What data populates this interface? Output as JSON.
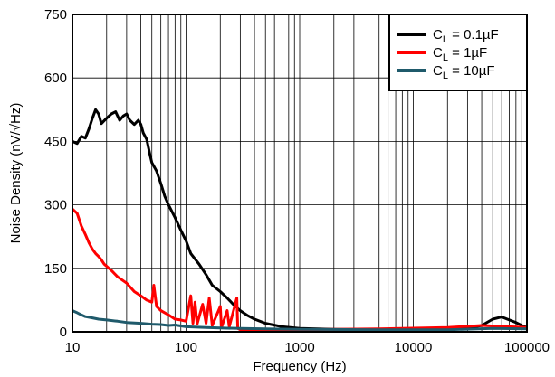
{
  "chart_data": {
    "type": "line",
    "title": "",
    "xlabel": "Frequency (Hz)",
    "ylabel": "Noise Density (nV/√Hz)",
    "x_scale": "log",
    "xlim": [
      10,
      100000
    ],
    "ylim": [
      0,
      750
    ],
    "x_ticks": [
      "10",
      "100",
      "1000",
      "10000",
      "100000"
    ],
    "y_ticks": [
      "0",
      "150",
      "300",
      "450",
      "600",
      "750"
    ],
    "grid": true,
    "legend_position": "top-right",
    "series": [
      {
        "name": "C",
        "name_sub": "L",
        "name_rest": " = 0.1µF",
        "color": "#000000",
        "points": [
          [
            10,
            450
          ],
          [
            11,
            445
          ],
          [
            12,
            462
          ],
          [
            13,
            458
          ],
          [
            14,
            480
          ],
          [
            15,
            505
          ],
          [
            16,
            525
          ],
          [
            17,
            515
          ],
          [
            18,
            492
          ],
          [
            20,
            505
          ],
          [
            22,
            515
          ],
          [
            24,
            520
          ],
          [
            26,
            500
          ],
          [
            28,
            510
          ],
          [
            30,
            515
          ],
          [
            32,
            500
          ],
          [
            35,
            490
          ],
          [
            38,
            500
          ],
          [
            40,
            490
          ],
          [
            42,
            470
          ],
          [
            45,
            455
          ],
          [
            48,
            420
          ],
          [
            50,
            400
          ],
          [
            55,
            380
          ],
          [
            60,
            350
          ],
          [
            65,
            320
          ],
          [
            70,
            300
          ],
          [
            80,
            270
          ],
          [
            90,
            240
          ],
          [
            100,
            215
          ],
          [
            110,
            185
          ],
          [
            130,
            160
          ],
          [
            150,
            135
          ],
          [
            170,
            110
          ],
          [
            200,
            95
          ],
          [
            230,
            80
          ],
          [
            260,
            65
          ],
          [
            300,
            50
          ],
          [
            350,
            38
          ],
          [
            400,
            30
          ],
          [
            500,
            20
          ],
          [
            700,
            12
          ],
          [
            1000,
            8
          ],
          [
            2000,
            6
          ],
          [
            5000,
            5
          ],
          [
            10000,
            5
          ],
          [
            20000,
            6
          ],
          [
            30000,
            8
          ],
          [
            40000,
            15
          ],
          [
            50000,
            30
          ],
          [
            60000,
            35
          ],
          [
            70000,
            28
          ],
          [
            80000,
            22
          ],
          [
            90000,
            15
          ],
          [
            100000,
            10
          ]
        ]
      },
      {
        "name": "C",
        "name_sub": "L",
        "name_rest": " = 1µF",
        "color": "#ff0000",
        "points": [
          [
            10,
            290
          ],
          [
            11,
            280
          ],
          [
            12,
            250
          ],
          [
            13,
            230
          ],
          [
            14,
            210
          ],
          [
            15,
            195
          ],
          [
            16,
            185
          ],
          [
            17,
            178
          ],
          [
            18,
            170
          ],
          [
            19,
            160
          ],
          [
            20,
            155
          ],
          [
            22,
            145
          ],
          [
            25,
            130
          ],
          [
            30,
            115
          ],
          [
            35,
            95
          ],
          [
            40,
            85
          ],
          [
            45,
            75
          ],
          [
            50,
            70
          ],
          [
            52,
            110
          ],
          [
            55,
            60
          ],
          [
            60,
            50
          ],
          [
            70,
            40
          ],
          [
            80,
            30
          ],
          [
            90,
            28
          ],
          [
            100,
            25
          ],
          [
            110,
            85
          ],
          [
            115,
            20
          ],
          [
            120,
            70
          ],
          [
            125,
            18
          ],
          [
            140,
            65
          ],
          [
            150,
            20
          ],
          [
            160,
            80
          ],
          [
            170,
            15
          ],
          [
            200,
            60
          ],
          [
            205,
            10
          ],
          [
            230,
            50
          ],
          [
            240,
            12
          ],
          [
            280,
            80
          ],
          [
            285,
            8
          ],
          [
            300,
            5
          ],
          [
            400,
            5
          ],
          [
            1000,
            5
          ],
          [
            5000,
            7
          ],
          [
            20000,
            10
          ],
          [
            40000,
            15
          ],
          [
            70000,
            12
          ],
          [
            100000,
            10
          ]
        ]
      },
      {
        "name": "C",
        "name_sub": "L",
        "name_rest": " = 10µF",
        "color": "#1f5a6b",
        "points": [
          [
            10,
            50
          ],
          [
            11,
            45
          ],
          [
            12,
            40
          ],
          [
            13,
            36
          ],
          [
            15,
            33
          ],
          [
            17,
            30
          ],
          [
            20,
            28
          ],
          [
            25,
            25
          ],
          [
            30,
            22
          ],
          [
            40,
            20
          ],
          [
            50,
            18
          ],
          [
            60,
            17
          ],
          [
            70,
            15
          ],
          [
            80,
            16
          ],
          [
            100,
            12
          ],
          [
            150,
            10
          ],
          [
            200,
            9
          ],
          [
            300,
            8
          ],
          [
            500,
            7
          ],
          [
            1000,
            6
          ],
          [
            5000,
            5
          ],
          [
            20000,
            5
          ],
          [
            50000,
            8
          ],
          [
            100000,
            7
          ]
        ]
      }
    ]
  }
}
